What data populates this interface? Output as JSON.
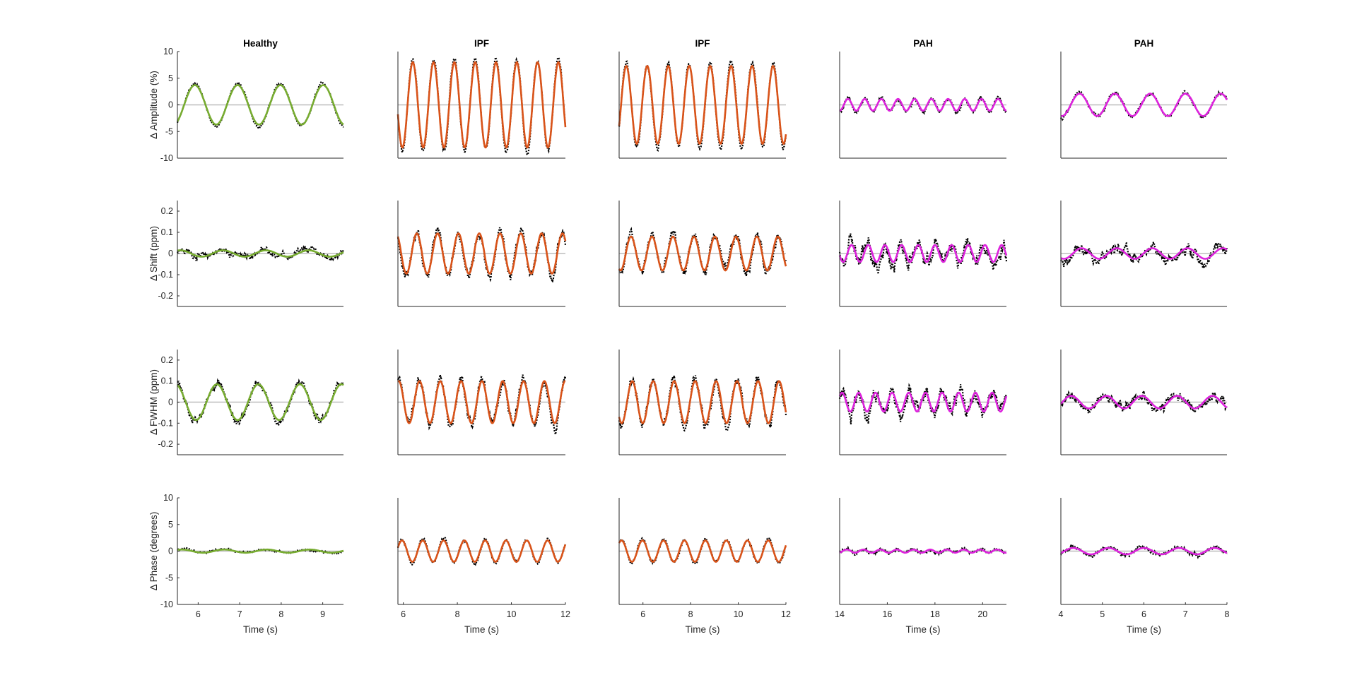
{
  "chart_data": {
    "type": "line",
    "layout": "4 rows x 5 columns of subplots",
    "colors": {
      "Healthy": "#77AC30",
      "IPF": "#D95319",
      "PAH": "#DD22DD",
      "measured": "#000000",
      "zero_line": "#BDBDBD"
    },
    "columns": [
      {
        "title": "Healthy",
        "group": "Healthy",
        "xlim": [
          5.5,
          9.5
        ],
        "xticks": [
          6,
          7,
          8,
          9
        ]
      },
      {
        "title": "IPF",
        "group": "IPF",
        "xlim": [
          5.8,
          12
        ],
        "xticks": [
          6,
          8,
          10,
          12
        ]
      },
      {
        "title": "IPF",
        "group": "IPF",
        "xlim": [
          5,
          12
        ],
        "xticks": [
          6,
          8,
          10,
          12
        ]
      },
      {
        "title": "PAH",
        "group": "PAH",
        "xlim": [
          14,
          21
        ],
        "xticks": [
          14,
          16,
          18,
          20
        ]
      },
      {
        "title": "PAH",
        "group": "PAH",
        "xlim": [
          4,
          8
        ],
        "xticks": [
          4,
          5,
          6,
          7,
          8
        ]
      }
    ],
    "rows": [
      {
        "ylabel": "Δ Amplitude (%)",
        "ylim": [
          -10,
          10
        ],
        "yticks": [
          -10,
          -5,
          0,
          5,
          10
        ],
        "ytick_labels": [
          "-10",
          "-5",
          "0",
          "5",
          "10"
        ]
      },
      {
        "ylabel": "Δ Shift (ppm)",
        "ylim": [
          -0.25,
          0.25
        ],
        "yticks": [
          -0.2,
          -0.1,
          0,
          0.1,
          0.2
        ],
        "ytick_labels": [
          "-0.2",
          "-0.1",
          "0",
          "0.1",
          "0.2"
        ]
      },
      {
        "ylabel": "Δ FWHM (ppm)",
        "ylim": [
          -0.25,
          0.25
        ],
        "yticks": [
          -0.2,
          -0.1,
          0,
          0.1,
          0.2
        ],
        "ytick_labels": [
          "-0.2",
          "-0.1",
          "0",
          "0.1",
          "0.2"
        ]
      },
      {
        "ylabel": "Δ Phase (degrees)",
        "ylim": [
          -10,
          10
        ],
        "yticks": [
          -10,
          -5,
          0,
          5,
          10
        ],
        "ytick_labels": [
          "-10",
          "-5",
          "0",
          "5",
          "10"
        ]
      }
    ],
    "xlabel": "Time (s)",
    "series_description": [
      "measured (black dotted)",
      "sinusoidal fit (solid, group color)"
    ],
    "fits": [
      [
        {
          "amp": 3.7,
          "period": 1.03,
          "peak": 5.92,
          "noise": 0.5
        },
        {
          "amp": 8.0,
          "period": 0.77,
          "peak": 6.35,
          "noise": 1.0
        },
        {
          "amp": 7.3,
          "period": 0.88,
          "peak": 5.3,
          "noise": 0.9
        },
        {
          "amp": 1.1,
          "period": 0.7,
          "peak": 14.35,
          "noise": 0.8
        },
        {
          "amp": 2.1,
          "period": 0.85,
          "peak": 4.45,
          "noise": 0.7
        }
      ],
      [
        {
          "amp": 0.015,
          "period": 1.03,
          "peak": 6.6,
          "noise": 0.03
        },
        {
          "amp": 0.095,
          "period": 0.77,
          "peak": 6.5,
          "noise": 0.05
        },
        {
          "amp": 0.08,
          "period": 0.88,
          "peak": 5.5,
          "noise": 0.05
        },
        {
          "amp": 0.04,
          "period": 0.7,
          "peak": 14.5,
          "noise": 0.08
        },
        {
          "amp": 0.025,
          "period": 0.85,
          "peak": 4.5,
          "noise": 0.05
        }
      ],
      [
        {
          "amp": 0.085,
          "period": 1.0,
          "peak": 6.45,
          "noise": 0.035
        },
        {
          "amp": 0.1,
          "period": 0.77,
          "peak": 6.6,
          "noise": 0.05
        },
        {
          "amp": 0.1,
          "period": 0.88,
          "peak": 5.55,
          "noise": 0.05
        },
        {
          "amp": 0.045,
          "period": 0.7,
          "peak": 14.1,
          "noise": 0.08
        },
        {
          "amp": 0.03,
          "period": 0.85,
          "peak": 5.1,
          "noise": 0.05
        }
      ],
      [
        {
          "amp": 0.3,
          "period": 1.03,
          "peak": 5.6,
          "noise": 0.4
        },
        {
          "amp": 2.0,
          "period": 0.77,
          "peak": 5.95,
          "noise": 0.6
        },
        {
          "amp": 2.0,
          "period": 0.88,
          "peak": 5.1,
          "noise": 0.6
        },
        {
          "amp": 0.3,
          "period": 0.7,
          "peak": 14.3,
          "noise": 0.6
        },
        {
          "amp": 0.6,
          "period": 0.85,
          "peak": 4.3,
          "noise": 0.7
        }
      ]
    ]
  }
}
